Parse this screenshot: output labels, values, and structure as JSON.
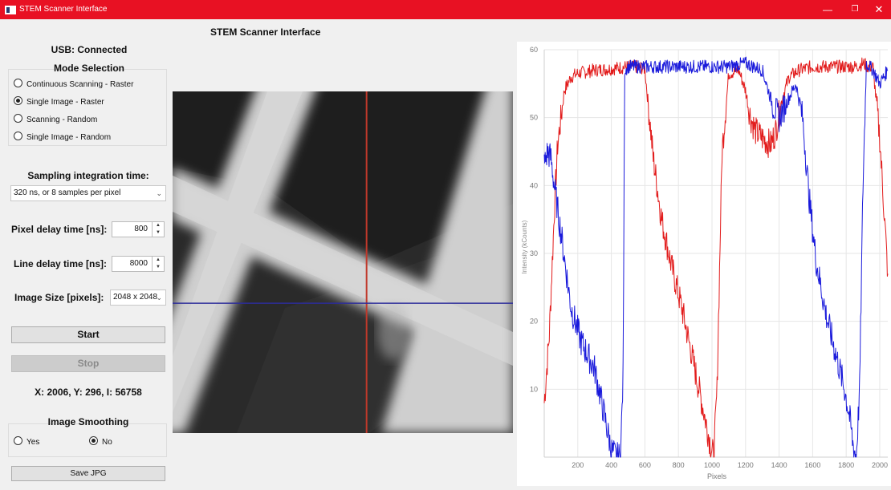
{
  "window": {
    "title": "STEM Scanner Interface",
    "minimize": "—",
    "restore": "❐",
    "close": "✕"
  },
  "header": {
    "title": "STEM Scanner Interface"
  },
  "usb_status": "USB: Connected",
  "mode": {
    "title": "Mode Selection",
    "options": [
      "Continuous Scanning - Raster",
      "Single Image - Raster",
      "Scanning - Random",
      "Single Image - Random"
    ],
    "selected": "Single Image - Raster"
  },
  "sampling": {
    "label": "Sampling integration time:",
    "value": "320 ns, or 8 samples per pixel"
  },
  "pixel_delay": {
    "label": "Pixel delay time [ns]:",
    "value": "800"
  },
  "line_delay": {
    "label": "Line delay time [ns]:",
    "value": "8000"
  },
  "image_size": {
    "label": "Image Size [pixels]:",
    "value": "2048 x 2048"
  },
  "buttons": {
    "start": "Start",
    "stop": "Stop",
    "save": "Save JPG"
  },
  "readout": "X: 2006, Y: 296, I: 56758",
  "smoothing": {
    "title": "Image Smoothing",
    "yes": "Yes",
    "no": "No",
    "selected": "No"
  },
  "image": {
    "vertical_cursor_fraction": 0.57,
    "horizontal_cursor_fraction": 0.62,
    "vertical_color": "#c0392b",
    "horizontal_color": "#2c2c9a"
  },
  "chart_data": {
    "type": "line",
    "xlabel": "Pixels",
    "ylabel": "Intensity (kCounts)",
    "xlim": [
      0,
      2048
    ],
    "ylim": [
      0,
      60
    ],
    "xticks": [
      "200",
      "400",
      "600",
      "800",
      "1000",
      "1200",
      "1400",
      "1600",
      "1800",
      "2000"
    ],
    "yticks": [
      "10",
      "20",
      "30",
      "40",
      "50",
      "60"
    ],
    "grid": true,
    "series": [
      {
        "color": "#e21b1b",
        "x": [
          0,
          30,
          60,
          80,
          120,
          160,
          200,
          300,
          400,
          500,
          560,
          600,
          650,
          700,
          760,
          820,
          880,
          940,
          990,
          1010,
          1030,
          1060,
          1100,
          1160,
          1200,
          1230,
          1260,
          1300,
          1350,
          1380,
          1420,
          1460,
          1520,
          1600,
          1700,
          1800,
          1860,
          1900,
          1930,
          1960,
          2000,
          2048
        ],
        "y": [
          8,
          18,
          36,
          46,
          54,
          56,
          56.5,
          57,
          57.2,
          57.5,
          57.5,
          57.2,
          44,
          35,
          28,
          22,
          15,
          8,
          2,
          0,
          10,
          45,
          56.5,
          57,
          54,
          50,
          48,
          47,
          46,
          48,
          53,
          56,
          57,
          57.5,
          57.5,
          57.5,
          57.5,
          58,
          57.5,
          57.5,
          47,
          27
        ]
      },
      {
        "color": "#1a1adb",
        "x": [
          0,
          20,
          40,
          60,
          100,
          160,
          220,
          300,
          360,
          400,
          430,
          455,
          470,
          480,
          500,
          530,
          560,
          600,
          700,
          800,
          900,
          1000,
          1100,
          1200,
          1300,
          1360,
          1400,
          1440,
          1500,
          1540,
          1580,
          1620,
          1680,
          1740,
          1790,
          1820,
          1840,
          1860,
          1880,
          1900,
          1920,
          1960,
          2000,
          2048
        ],
        "y": [
          43,
          45,
          44,
          40,
          33,
          22,
          17,
          13,
          6,
          1,
          0,
          0,
          12,
          57,
          57.5,
          57.5,
          57.5,
          57.5,
          57.5,
          57.5,
          57.5,
          57.5,
          57.5,
          58,
          57,
          52,
          50,
          52,
          55,
          50,
          38,
          29,
          21,
          15,
          10,
          6,
          2,
          0,
          10,
          40,
          58,
          57,
          55,
          57
        ]
      }
    ]
  }
}
